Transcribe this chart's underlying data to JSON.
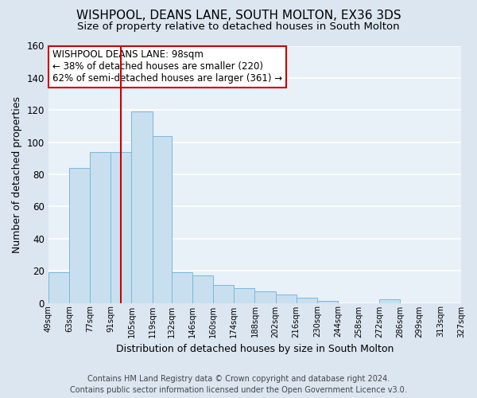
{
  "title": "WISHPOOL, DEANS LANE, SOUTH MOLTON, EX36 3DS",
  "subtitle": "Size of property relative to detached houses in South Molton",
  "xlabel": "Distribution of detached houses by size in South Molton",
  "ylabel": "Number of detached properties",
  "footer_line1": "Contains HM Land Registry data © Crown copyright and database right 2024.",
  "footer_line2": "Contains public sector information licensed under the Open Government Licence v3.0.",
  "annotation_line1": "WISHPOOL DEANS LANE: 98sqm",
  "annotation_line2": "← 38% of detached houses are smaller (220)",
  "annotation_line3": "62% of semi-detached houses are larger (361) →",
  "bar_edges": [
    49,
    63,
    77,
    91,
    105,
    119,
    132,
    146,
    160,
    174,
    188,
    202,
    216,
    230,
    244,
    258,
    272,
    286,
    299,
    313,
    327
  ],
  "bar_heights": [
    19,
    84,
    94,
    94,
    119,
    104,
    19,
    17,
    11,
    9,
    7,
    5,
    3,
    1,
    0,
    0,
    2,
    0,
    0,
    0
  ],
  "bar_color": "#c8dff0",
  "bar_edge_color": "#7ab8d8",
  "vline_x": 98,
  "vline_color": "#cc0000",
  "tick_labels": [
    "49sqm",
    "63sqm",
    "77sqm",
    "91sqm",
    "105sqm",
    "119sqm",
    "132sqm",
    "146sqm",
    "160sqm",
    "174sqm",
    "188sqm",
    "202sqm",
    "216sqm",
    "230sqm",
    "244sqm",
    "258sqm",
    "272sqm",
    "286sqm",
    "299sqm",
    "313sqm",
    "327sqm"
  ],
  "ylim": [
    0,
    160
  ],
  "yticks": [
    0,
    20,
    40,
    60,
    80,
    100,
    120,
    140,
    160
  ],
  "fig_bg_color": "#dce6f0",
  "plot_bg_color": "#e8f0f8",
  "grid_color": "#ffffff",
  "annotation_box_edge": "#cc0000",
  "annotation_box_fill": "#ffffff",
  "title_fontsize": 11,
  "subtitle_fontsize": 9.5,
  "ylabel_fontsize": 9,
  "xlabel_fontsize": 9,
  "footer_fontsize": 7,
  "annotation_fontsize": 8.5
}
